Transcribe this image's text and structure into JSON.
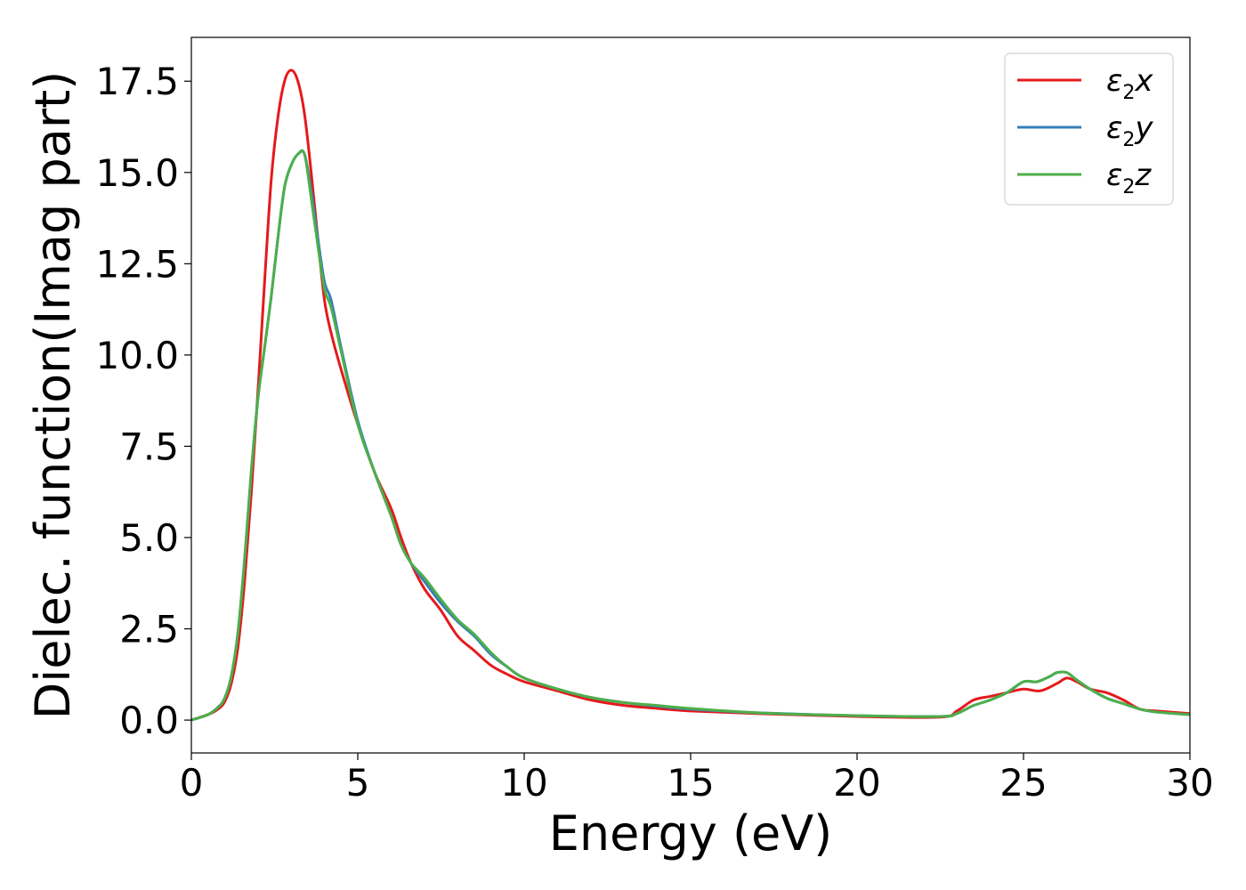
{
  "chart_data": {
    "type": "line",
    "title": "",
    "xlabel": "Energy (eV)",
    "ylabel": "Dielec. function(Imag part)",
    "xlim": [
      0,
      30
    ],
    "ylim": [
      -0.9,
      18.7
    ],
    "xticks": [
      0,
      5,
      10,
      15,
      20,
      25,
      30
    ],
    "xtick_labels": [
      "0",
      "5",
      "10",
      "15",
      "20",
      "25",
      "30"
    ],
    "yticks": [
      0.0,
      2.5,
      5.0,
      7.5,
      10.0,
      12.5,
      15.0,
      17.5
    ],
    "ytick_labels": [
      "0.0",
      "2.5",
      "5.0",
      "7.5",
      "10.0",
      "12.5",
      "15.0",
      "17.5"
    ],
    "grid": false,
    "legend_position": "top-right",
    "series": [
      {
        "name": "x",
        "legend_label": {
          "base": "ε",
          "sub": "2",
          "suffix": "x"
        },
        "color": "#e41a1c",
        "x": [
          0,
          0.5,
          0.8,
          1.0,
          1.2,
          1.4,
          1.6,
          1.8,
          2.0,
          2.2,
          2.4,
          2.6,
          2.8,
          3.0,
          3.2,
          3.4,
          3.6,
          3.8,
          4.0,
          4.2,
          4.5,
          5.0,
          5.5,
          6.0,
          6.3,
          6.6,
          7.0,
          7.5,
          8.0,
          8.5,
          9.0,
          9.5,
          10,
          11,
          12,
          13,
          14,
          15,
          17,
          20,
          22.5,
          23.0,
          23.5,
          24.0,
          24.5,
          25.0,
          25.5,
          26.0,
          26.3,
          26.6,
          27.0,
          27.5,
          28.0,
          28.5,
          29.0,
          30.0
        ],
        "y": [
          0,
          0.15,
          0.3,
          0.5,
          1.0,
          2.0,
          3.8,
          6.2,
          9.0,
          12.0,
          14.8,
          16.5,
          17.5,
          17.8,
          17.5,
          16.6,
          15.0,
          13.2,
          11.5,
          10.6,
          9.6,
          8.1,
          6.8,
          5.8,
          5.0,
          4.3,
          3.6,
          3.0,
          2.3,
          1.9,
          1.5,
          1.25,
          1.05,
          0.8,
          0.55,
          0.4,
          0.32,
          0.25,
          0.18,
          0.1,
          0.08,
          0.25,
          0.55,
          0.65,
          0.75,
          0.85,
          0.8,
          1.0,
          1.15,
          1.05,
          0.85,
          0.75,
          0.55,
          0.3,
          0.25,
          0.18
        ]
      },
      {
        "name": "y",
        "legend_label": {
          "base": "ε",
          "sub": "2",
          "suffix": "y"
        },
        "color": "#377eb8",
        "x": [
          0,
          0.5,
          0.8,
          1.0,
          1.2,
          1.4,
          1.6,
          1.8,
          2.0,
          2.2,
          2.4,
          2.6,
          2.8,
          3.0,
          3.2,
          3.4,
          3.6,
          3.8,
          4.0,
          4.2,
          4.5,
          5.0,
          5.5,
          6.0,
          6.3,
          6.6,
          7.0,
          7.5,
          8.0,
          8.5,
          9.0,
          9.5,
          10,
          11,
          12,
          13,
          14,
          15,
          17,
          20,
          22.5,
          23.0,
          23.5,
          24.0,
          24.5,
          25.0,
          25.4,
          25.8,
          26.0,
          26.3,
          26.6,
          27.0,
          27.5,
          28.0,
          28.5,
          29.0,
          30.0
        ],
        "y": [
          0,
          0.15,
          0.35,
          0.6,
          1.2,
          2.4,
          4.4,
          6.8,
          8.8,
          10.2,
          11.6,
          13.2,
          14.6,
          15.2,
          15.5,
          15.5,
          14.5,
          13.2,
          12.0,
          11.5,
          10.2,
          8.2,
          6.8,
          5.6,
          4.8,
          4.3,
          3.8,
          3.2,
          2.7,
          2.3,
          1.8,
          1.45,
          1.15,
          0.85,
          0.62,
          0.48,
          0.38,
          0.3,
          0.2,
          0.12,
          0.1,
          0.18,
          0.4,
          0.55,
          0.75,
          1.05,
          1.05,
          1.2,
          1.3,
          1.3,
          1.1,
          0.85,
          0.6,
          0.45,
          0.3,
          0.22,
          0.15
        ]
      },
      {
        "name": "z",
        "legend_label": {
          "base": "ε",
          "sub": "2",
          "suffix": "z"
        },
        "color": "#4daf4a",
        "x": [
          0,
          0.5,
          0.8,
          1.0,
          1.2,
          1.4,
          1.6,
          1.8,
          2.0,
          2.2,
          2.4,
          2.6,
          2.8,
          3.0,
          3.2,
          3.4,
          3.6,
          3.8,
          4.0,
          4.2,
          4.5,
          5.0,
          5.5,
          6.0,
          6.3,
          6.6,
          7.0,
          7.5,
          8.0,
          8.5,
          9.0,
          9.5,
          10,
          11,
          12,
          13,
          14,
          15,
          17,
          20,
          22.5,
          23.0,
          23.5,
          24.0,
          24.5,
          25.0,
          25.4,
          25.8,
          26.0,
          26.3,
          26.6,
          27.0,
          27.5,
          28.0,
          28.5,
          29.0,
          30.0
        ],
        "y": [
          0,
          0.15,
          0.35,
          0.6,
          1.2,
          2.4,
          4.4,
          6.8,
          8.8,
          10.2,
          11.6,
          13.2,
          14.6,
          15.2,
          15.5,
          15.5,
          14.3,
          13.0,
          11.8,
          11.3,
          10.1,
          8.1,
          6.8,
          5.6,
          4.8,
          4.3,
          3.9,
          3.3,
          2.75,
          2.35,
          1.85,
          1.45,
          1.15,
          0.85,
          0.62,
          0.48,
          0.4,
          0.32,
          0.2,
          0.12,
          0.1,
          0.18,
          0.4,
          0.55,
          0.75,
          1.05,
          1.05,
          1.2,
          1.3,
          1.3,
          1.1,
          0.85,
          0.6,
          0.45,
          0.3,
          0.22,
          0.15
        ]
      }
    ]
  }
}
